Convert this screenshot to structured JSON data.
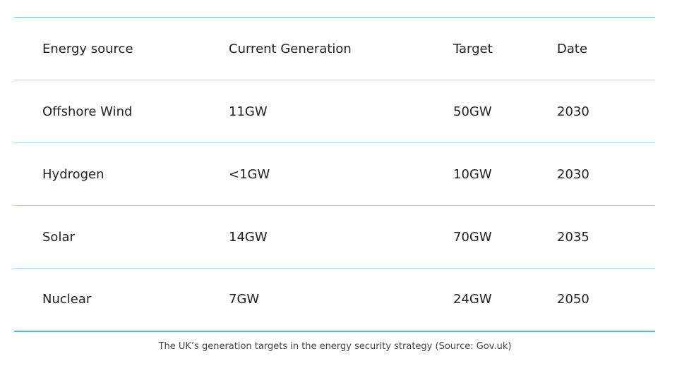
{
  "table": {
    "header": [
      "Energy source",
      "Current Generation",
      "Target",
      "Date"
    ],
    "rows": [
      [
        "Offshore Wind",
        "11GW",
        "50GW",
        "2030"
      ],
      [
        "Hydrogen",
        "<1GW",
        "10GW",
        "2030"
      ],
      [
        "Solar",
        "14GW",
        "70GW",
        "2035"
      ],
      [
        "Nuclear",
        "7GW",
        "24GW",
        "2050"
      ]
    ]
  },
  "caption": "The UK’s generation targets in the energy security strategy (Source: Gov.uk)"
}
